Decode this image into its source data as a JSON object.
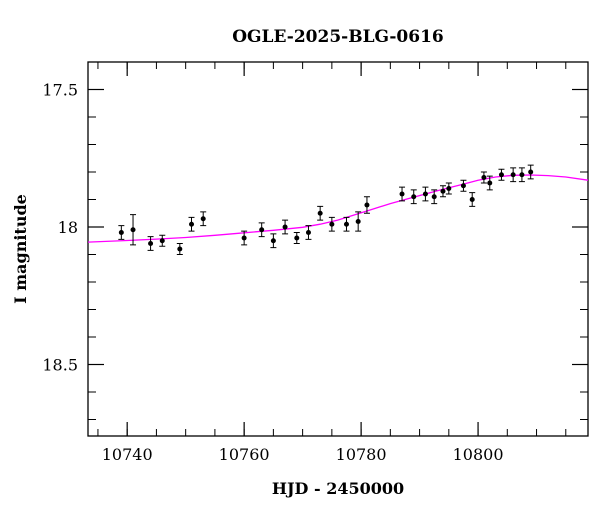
{
  "chart_data": {
    "type": "scatter",
    "title": "OGLE-2025-BLG-0616",
    "xlabel": "HJD - 2450000",
    "ylabel": "I magnitude",
    "xlim": [
      10733.3,
      10818.8
    ],
    "ylim": [
      18.76,
      17.4
    ],
    "y_inverted": true,
    "x_ticks_major": [
      10740,
      10760,
      10780,
      10800
    ],
    "x_tick_labels": [
      "10740",
      "10760",
      "10780",
      "10800"
    ],
    "y_ticks_major": [
      17.5,
      18,
      18.5
    ],
    "y_tick_labels": [
      "17.5",
      "18",
      "18.5"
    ],
    "grid": false,
    "colors": {
      "points": "#000000",
      "model": "#ff00ff",
      "frame": "#000000"
    },
    "series": [
      {
        "type": "errorbar_scatter",
        "x": [
          10739.0,
          10741.0,
          10744.0,
          10746.0,
          10749.0,
          10751.0,
          10753.0,
          10760.0,
          10763.0,
          10765.0,
          10767.0,
          10769.0,
          10771.0,
          10773.0,
          10775.0,
          10777.5,
          10779.5,
          10781.0,
          10787.0,
          10789.0,
          10791.0,
          10792.5,
          10794.0,
          10795.0,
          10797.5,
          10799.0,
          10801.0,
          10802.0,
          10804.0,
          10806.0,
          10807.5,
          10809.0
        ],
        "y": [
          18.02,
          18.01,
          18.06,
          18.05,
          18.08,
          17.99,
          17.97,
          18.04,
          18.01,
          18.05,
          18.0,
          18.04,
          18.02,
          17.95,
          17.99,
          17.99,
          17.98,
          17.92,
          17.88,
          17.89,
          17.88,
          17.89,
          17.87,
          17.86,
          17.85,
          17.9,
          17.82,
          17.84,
          17.81,
          17.81,
          17.81,
          17.8
        ],
        "yerr": [
          0.025,
          0.055,
          0.025,
          0.02,
          0.02,
          0.025,
          0.025,
          0.025,
          0.025,
          0.025,
          0.025,
          0.02,
          0.025,
          0.025,
          0.025,
          0.025,
          0.035,
          0.03,
          0.025,
          0.025,
          0.025,
          0.025,
          0.02,
          0.02,
          0.02,
          0.025,
          0.02,
          0.025,
          0.02,
          0.025,
          0.025,
          0.025
        ]
      },
      {
        "type": "line",
        "x": [
          10733.3,
          10740,
          10745,
          10750,
          10755,
          10760,
          10765,
          10770,
          10773,
          10776,
          10779,
          10782,
          10785,
          10788,
          10791,
          10794,
          10797,
          10800,
          10803,
          10806,
          10809,
          10812,
          10815,
          10818.8
        ],
        "y": [
          18.055,
          18.049,
          18.044,
          18.038,
          18.03,
          18.021,
          18.012,
          18.001,
          17.99,
          17.975,
          17.955,
          17.935,
          17.915,
          17.897,
          17.88,
          17.863,
          17.847,
          17.83,
          17.818,
          17.812,
          17.811,
          17.813,
          17.818,
          17.83
        ]
      }
    ]
  }
}
